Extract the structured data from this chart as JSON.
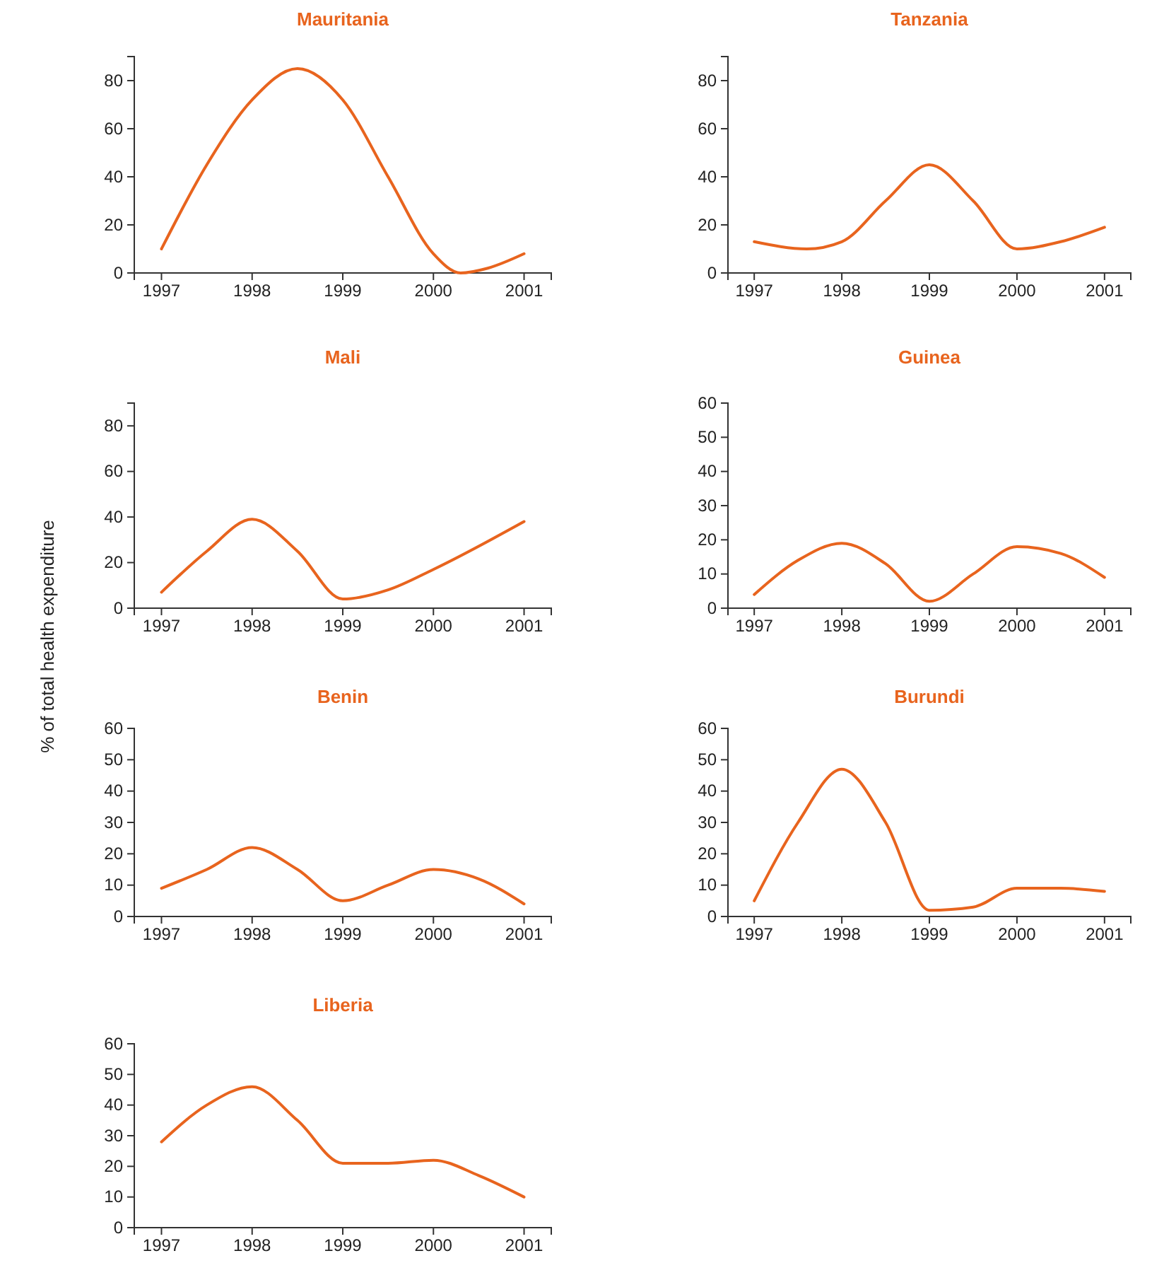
{
  "chart_data": [
    {
      "type": "line",
      "title": "Mauritania",
      "x": [
        1997,
        1997.5,
        1998,
        1998.5,
        1999,
        1999.5,
        2000,
        2000.3,
        2000.6,
        2001
      ],
      "values": [
        10,
        45,
        72,
        85,
        72,
        40,
        8,
        0,
        2,
        8
      ],
      "color": "#e8641e",
      "xlim": [
        1996.7,
        2001.3
      ],
      "xticks": [
        1997,
        1998,
        1999,
        2000,
        2001
      ],
      "ylim": [
        0,
        90
      ],
      "yticks": [
        0,
        20,
        40,
        60,
        80
      ]
    },
    {
      "type": "line",
      "title": "Tanzania",
      "x": [
        1997,
        1997.6,
        1998,
        1998.5,
        1999,
        1999.5,
        2000,
        2000.5,
        2001
      ],
      "values": [
        13,
        10,
        13,
        30,
        45,
        30,
        10,
        13,
        19
      ],
      "color": "#e8641e",
      "xlim": [
        1996.7,
        2001.3
      ],
      "xticks": [
        1997,
        1998,
        1999,
        2000,
        2001
      ],
      "ylim": [
        0,
        90
      ],
      "yticks": [
        0,
        20,
        40,
        60,
        80
      ]
    },
    {
      "type": "line",
      "title": "Mali",
      "ylabel": "% of total health expenditure",
      "x": [
        1997,
        1997.5,
        1998,
        1998.5,
        1999,
        1999.5,
        2000,
        2001
      ],
      "values": [
        7,
        25,
        39,
        25,
        4,
        8,
        17,
        38
      ],
      "color": "#e8641e",
      "xlim": [
        1996.7,
        2001.3
      ],
      "xticks": [
        1997,
        1998,
        1999,
        2000,
        2001
      ],
      "ylim": [
        0,
        90
      ],
      "yticks": [
        0,
        20,
        40,
        60,
        80
      ]
    },
    {
      "type": "line",
      "title": "Guinea",
      "x": [
        1997,
        1997.5,
        1998,
        1998.5,
        1999,
        1999.5,
        2000,
        2000.5,
        2001
      ],
      "values": [
        4,
        14,
        19,
        13,
        2,
        10,
        18,
        16,
        9
      ],
      "color": "#e8641e",
      "xlim": [
        1996.7,
        2001.3
      ],
      "xticks": [
        1997,
        1998,
        1999,
        2000,
        2001
      ],
      "ylim": [
        0,
        60
      ],
      "yticks": [
        0,
        10,
        20,
        30,
        40,
        50,
        60
      ]
    },
    {
      "type": "line",
      "title": "Benin",
      "x": [
        1997,
        1997.5,
        1998,
        1998.5,
        1999,
        1999.5,
        2000,
        2000.5,
        2001
      ],
      "values": [
        9,
        15,
        22,
        15,
        5,
        10,
        15,
        12,
        4
      ],
      "color": "#e8641e",
      "xlim": [
        1996.7,
        2001.3
      ],
      "xticks": [
        1997,
        1998,
        1999,
        2000,
        2001
      ],
      "ylim": [
        0,
        60
      ],
      "yticks": [
        0,
        10,
        20,
        30,
        40,
        50,
        60
      ]
    },
    {
      "type": "line",
      "title": "Burundi",
      "x": [
        1997,
        1997.5,
        1998,
        1998.5,
        1999,
        1999.5,
        2000,
        2000.5,
        2001
      ],
      "values": [
        5,
        30,
        47,
        30,
        2,
        3,
        9,
        9,
        8
      ],
      "color": "#e8641e",
      "xlim": [
        1996.7,
        2001.3
      ],
      "xticks": [
        1997,
        1998,
        1999,
        2000,
        2001
      ],
      "ylim": [
        0,
        60
      ],
      "yticks": [
        0,
        10,
        20,
        30,
        40,
        50,
        60
      ]
    },
    {
      "type": "line",
      "title": "Liberia",
      "x": [
        1997,
        1997.5,
        1998,
        1998.5,
        1999,
        1999.5,
        2000,
        2000.5,
        2001
      ],
      "values": [
        28,
        40,
        46,
        35,
        21,
        21,
        22,
        17,
        10
      ],
      "color": "#e8641e",
      "xlim": [
        1996.7,
        2001.3
      ],
      "xticks": [
        1997,
        1998,
        1999,
        2000,
        2001
      ],
      "ylim": [
        0,
        60
      ],
      "yticks": [
        0,
        10,
        20,
        30,
        40,
        50,
        60
      ]
    }
  ]
}
